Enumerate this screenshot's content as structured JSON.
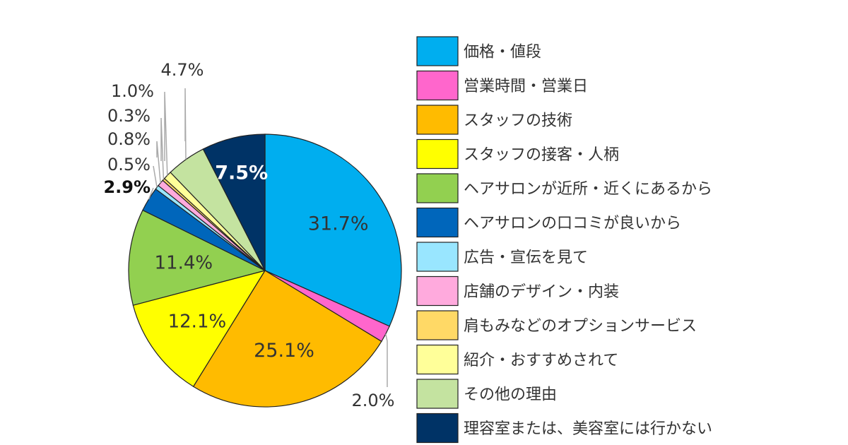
{
  "chart_data": {
    "type": "pie",
    "categories": [
      "価格・値段",
      "営業時間・営業日",
      "スタッフの技術",
      "スタッフの接客・人柄",
      "ヘアサロンが近所・近くにあるから",
      "ヘアサロンの口コミが良いから",
      "広告・宣伝を見て",
      "店舗のデザイン・内装",
      "肩もみなどのオプションサービス",
      "紹介・おすすめされて",
      "その他の理由",
      "理容室または、美容室には行かない"
    ],
    "values": [
      31.7,
      2.0,
      25.1,
      12.1,
      11.4,
      2.9,
      0.5,
      0.8,
      0.3,
      1.0,
      4.7,
      7.5
    ],
    "labels": [
      "31.7%",
      "2.0%",
      "25.1%",
      "12.1%",
      "11.4%",
      "2.9%",
      "0.5%",
      "0.8%",
      "0.3%",
      "1.0%",
      "4.7%",
      "7.5%"
    ],
    "colors": [
      "#00aeef",
      "#ff66cc",
      "#ffbb00",
      "#ffff00",
      "#92d050",
      "#0066bb",
      "#99e6ff",
      "#ffaadd",
      "#ffd966",
      "#ffff99",
      "#c4e3a0",
      "#003366"
    ],
    "label_colors": [
      "#333333",
      "#333333",
      "#333333",
      "#333333",
      "#333333",
      "#111111",
      "#333333",
      "#333333",
      "#333333",
      "#333333",
      "#333333",
      "#ffffff"
    ],
    "title": "",
    "legend_position": "right",
    "start": "top, clockwise"
  }
}
